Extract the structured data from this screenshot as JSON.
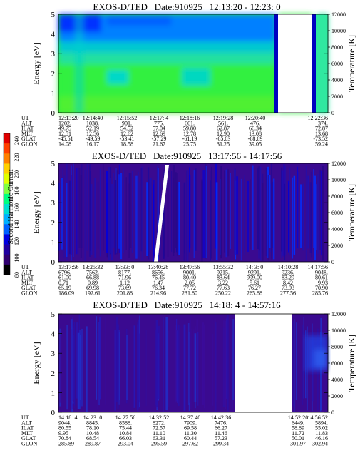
{
  "colorbar": {
    "label": "Second Harmonic Current",
    "ticks": [
      "240",
      "220",
      "200",
      "180",
      "160",
      "140",
      "120",
      "100",
      "80"
    ],
    "colors": [
      "#e00000",
      "#ff4000",
      "#ff8000",
      "#ffd000",
      "#e0ff00",
      "#80ff40",
      "#00ff80",
      "#00e0d0",
      "#00b0ff",
      "#0060ff",
      "#0000e0",
      "#2000a0",
      "#300070",
      "#000000"
    ]
  },
  "ephem_labels": [
    "UT",
    "ALT",
    "ILAT",
    "MLT",
    "GLAT",
    "GLON"
  ],
  "chart_data": [
    {
      "type": "heatmap",
      "title": "EXOS-D/TED   Date:910925   12:13:20 - 12:23: 0",
      "ylabel": "Energy [eV]",
      "y2label": "Temperature [K]",
      "ylim": [
        0,
        5
      ],
      "y2lim": [
        0,
        12000
      ],
      "yticks": [
        "0",
        "1",
        "2",
        "3",
        "4",
        "5"
      ],
      "y2ticks": [
        "0",
        "2000",
        "4000",
        "6000",
        "8000",
        "10000",
        "12000"
      ],
      "colormap": [
        "#0000ff",
        "#0060ff",
        "#00a0ff",
        "#00d0d0",
        "#00e890",
        "#30f040",
        "#60f020"
      ],
      "rows": [
        {
          "label": "UT",
          "values": [
            "12:13:20",
            "12:14:40",
            "12:15:52",
            "12:17: 4",
            "12:18:16",
            "12:19:28",
            "12:20:40",
            "12:22:36"
          ]
        },
        {
          "label": "ALT",
          "values": [
            "1202.",
            "1038.",
            "901.",
            "775.",
            "661.",
            "561.",
            "476.",
            "374."
          ]
        },
        {
          "label": "ILAT",
          "values": [
            "49.75",
            "52.19",
            "54.52",
            "57.04",
            "59.80",
            "62.87",
            "66.34",
            "72.87"
          ]
        },
        {
          "label": "MLT",
          "values": [
            "12.51",
            "12.56",
            "12.62",
            "12.69",
            "12.78",
            "12.90",
            "13.08",
            "13.68"
          ]
        },
        {
          "label": "GLAT",
          "values": [
            "-45.51",
            "-49.59",
            "-53.41",
            "-57.29",
            "-61.19",
            "-65.03",
            "-68.69",
            "-73.52"
          ]
        },
        {
          "label": "GLON",
          "values": [
            "14.08",
            "16.17",
            "18.58",
            "21.67",
            "25.75",
            "31.25",
            "39.05",
            "59.24"
          ]
        }
      ]
    },
    {
      "type": "heatmap",
      "title": "EXOS-D/TED   Date:910925   13:17:56 - 14:17:56",
      "ylabel": "Energy [eV]",
      "y2label": "Temperature [K]",
      "ylim": [
        0,
        5
      ],
      "y2lim": [
        0,
        12000
      ],
      "yticks": [
        "0",
        "1",
        "2",
        "3",
        "4",
        "5"
      ],
      "y2ticks": [
        "0",
        "2000",
        "4000",
        "6000",
        "8000",
        "10000",
        "12000"
      ],
      "colormap": [
        "#300070",
        "#2000a0",
        "#3010b0",
        "#0000e0",
        "#0030ff",
        "#ffffff"
      ],
      "rows": [
        {
          "label": "UT",
          "values": [
            "13:17:56",
            "13:25:32",
            "13:33: 0",
            "13:40:28",
            "13:47:56",
            "13:55:32",
            "14: 3: 0",
            "14:10:28",
            "14:17:56"
          ]
        },
        {
          "label": "ALT",
          "values": [
            "6796.",
            "7562.",
            "8177.",
            "8656.",
            "9001.",
            "9215.",
            "9291.",
            "9236.",
            "9048."
          ]
        },
        {
          "label": "ILAT",
          "values": [
            "61.00",
            "66.88",
            "71.96",
            "76.45",
            "80.40",
            "83.64",
            "999.00",
            "83.29",
            "80.61"
          ]
        },
        {
          "label": "MLT",
          "values": [
            "0.71",
            "0.89",
            "1.12",
            "1.47",
            "2.05",
            "3.22",
            "5.61",
            "8.42",
            "9.93"
          ]
        },
        {
          "label": "GLAT",
          "values": [
            "65.19",
            "69.98",
            "73.69",
            "76.34",
            "77.72",
            "77.63",
            "76.27",
            "73.93",
            "70.90"
          ]
        },
        {
          "label": "GLON",
          "values": [
            "186.09",
            "192.61",
            "201.88",
            "214.96",
            "231.80",
            "250.22",
            "265.88",
            "277.56",
            "285.76"
          ]
        }
      ]
    },
    {
      "type": "heatmap",
      "title": "EXOS-D/TED   Date:910925   14:18: 4 - 14:57:16",
      "ylabel": "Energy [eV]",
      "y2label": "Temperature [K]",
      "ylim": [
        0,
        5
      ],
      "y2lim": [
        0,
        12000
      ],
      "yticks": [
        "0",
        "1",
        "2",
        "3",
        "4",
        "5"
      ],
      "y2ticks": [
        "0",
        "2000",
        "4000",
        "6000",
        "8000",
        "10000",
        "12000"
      ],
      "colormap": [
        "#300070",
        "#3a0a90",
        "#2a10b0",
        "#2030d0",
        "#3050f0"
      ],
      "rows": [
        {
          "label": "UT",
          "values": [
            "14:18: 4",
            "14:23: 0",
            "14:27:56",
            "14:32:52",
            "14:37:40",
            "14:42:36",
            "14:52:20",
            "14:56:52"
          ]
        },
        {
          "label": "ALT",
          "values": [
            "9044.",
            "8845.",
            "8588.",
            "8272.",
            "7909.",
            "7476.",
            "6449.",
            "5894."
          ]
        },
        {
          "label": "ILAT",
          "values": [
            "80.55",
            "78.10",
            "75.44",
            "72.57",
            "69.58",
            "66.27",
            "58.89",
            "55.02"
          ]
        },
        {
          "label": "MLT",
          "values": [
            "9.95",
            "10.48",
            "10.84",
            "11.10",
            "11.30",
            "11.46",
            "11.72",
            "11.83"
          ]
        },
        {
          "label": "GLAT",
          "values": [
            "70.84",
            "68.54",
            "66.03",
            "63.31",
            "60.44",
            "57.23",
            "50.01",
            "46.16"
          ]
        },
        {
          "label": "GLON",
          "values": [
            "285.89",
            "289.87",
            "293.04",
            "295.59",
            "297.62",
            "299.34",
            "301.97",
            "302.94"
          ]
        }
      ]
    }
  ]
}
